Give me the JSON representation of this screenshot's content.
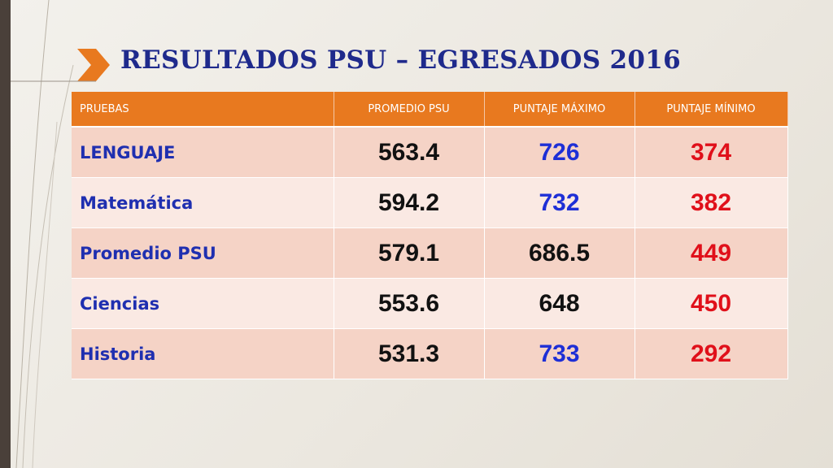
{
  "title": "RESULTADOS PSU – EGRESADOS 2016",
  "table": {
    "header": [
      "PRUEBAS",
      "PROMEDIO PSU",
      "PUNTAJE MÁXIMO",
      "PUNTAJE  MÍNIMO"
    ],
    "rows": [
      [
        "LENGUAJE",
        563.4,
        726,
        374
      ],
      [
        "Matemática",
        594.2,
        732,
        382
      ],
      [
        "Promedio PSU",
        579.1,
        686.5,
        449
      ],
      [
        "Ciencias",
        553.6,
        648,
        450
      ],
      [
        "Historia",
        531.3,
        733,
        292
      ]
    ]
  }
}
